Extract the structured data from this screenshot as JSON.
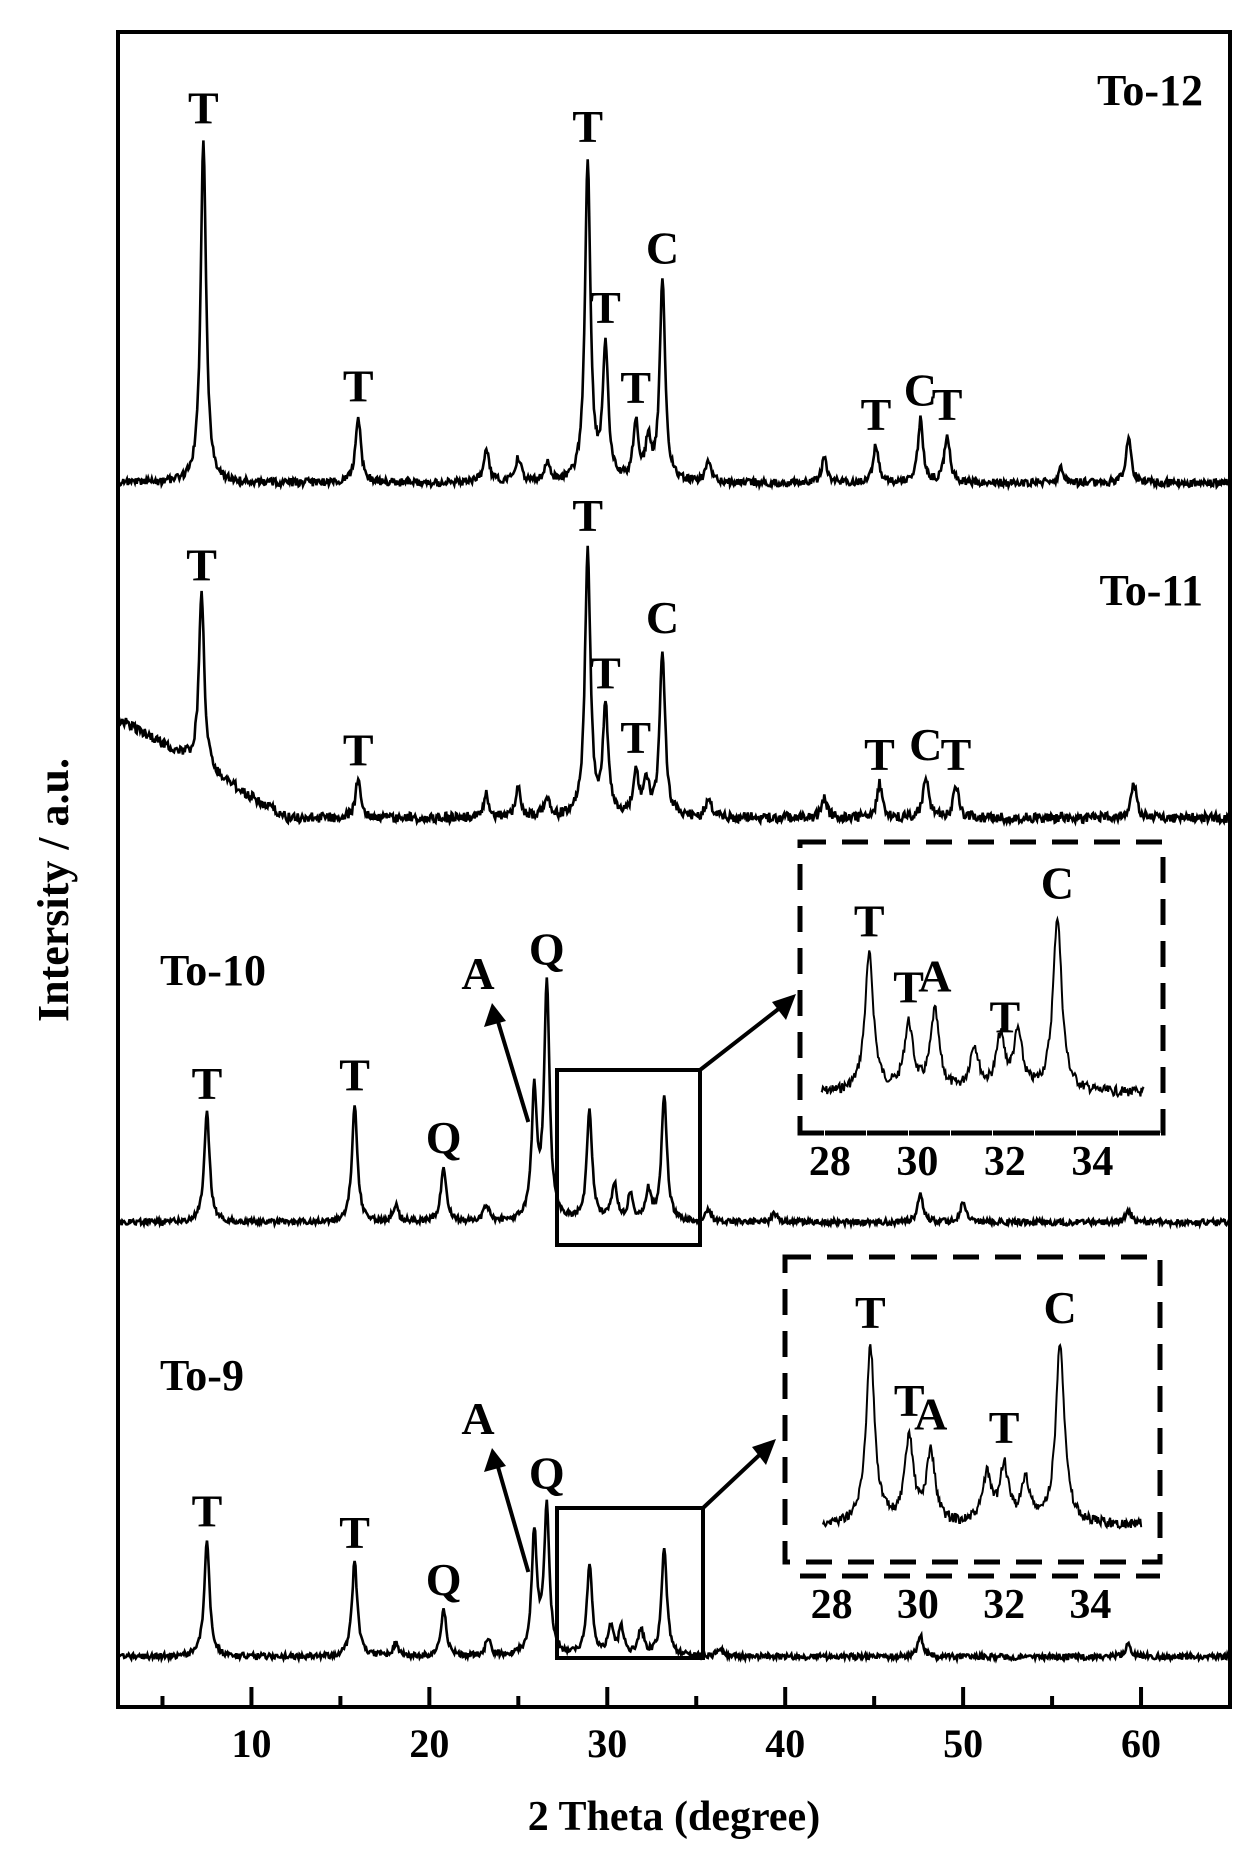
{
  "chart_data": {
    "type": "line",
    "xlabel": "2 Theta (degree)",
    "ylabel": "Intersity / a.u.",
    "xlim": [
      2.5,
      65
    ],
    "x_ticks": [
      10,
      20,
      30,
      40,
      50,
      60
    ],
    "grid": false,
    "legend": "none",
    "series": [
      {
        "name": "To-12",
        "baseline": 0.1,
        "peaks": [
          [
            7.3,
            0.72
          ],
          [
            16.0,
            0.14
          ],
          [
            23.2,
            0.07
          ],
          [
            25.0,
            0.05
          ],
          [
            26.6,
            0.04
          ],
          [
            28.9,
            0.67
          ],
          [
            29.9,
            0.28
          ],
          [
            31.6,
            0.12
          ],
          [
            32.3,
            0.08
          ],
          [
            33.1,
            0.42
          ],
          [
            35.7,
            0.04
          ],
          [
            42.2,
            0.05
          ],
          [
            45.1,
            0.08
          ],
          [
            47.6,
            0.13
          ],
          [
            49.1,
            0.1
          ],
          [
            55.5,
            0.03
          ],
          [
            59.3,
            0.09
          ]
        ],
        "labels": [
          {
            "text": "T",
            "x": 7.3
          },
          {
            "text": "T",
            "x": 16.0
          },
          {
            "text": "T",
            "x": 28.9
          },
          {
            "text": "T",
            "x": 29.9
          },
          {
            "text": "T",
            "x": 31.6
          },
          {
            "text": "C",
            "x": 33.1
          },
          {
            "text": "T",
            "x": 45.1
          },
          {
            "text": "C",
            "x": 47.6
          },
          {
            "text": "T",
            "x": 49.1
          }
        ],
        "sample_label": "To-12"
      },
      {
        "name": "To-11",
        "baseline": 0.1,
        "peaks": [
          [
            7.2,
            0.36
          ],
          [
            16.0,
            0.08
          ],
          [
            23.2,
            0.05
          ],
          [
            25.0,
            0.06
          ],
          [
            26.6,
            0.04
          ],
          [
            28.9,
            0.56
          ],
          [
            29.9,
            0.22
          ],
          [
            31.6,
            0.09
          ],
          [
            32.2,
            0.07
          ],
          [
            33.1,
            0.35
          ],
          [
            35.7,
            0.04
          ],
          [
            42.2,
            0.04
          ],
          [
            45.3,
            0.07
          ],
          [
            47.9,
            0.09
          ],
          [
            49.6,
            0.07
          ],
          [
            59.6,
            0.07
          ]
        ],
        "labels": [
          {
            "text": "T",
            "x": 7.2
          },
          {
            "text": "T",
            "x": 16.0
          },
          {
            "text": "T",
            "x": 28.9
          },
          {
            "text": "T",
            "x": 29.9
          },
          {
            "text": "T",
            "x": 31.6
          },
          {
            "text": "C",
            "x": 33.1
          },
          {
            "text": "T",
            "x": 45.3
          },
          {
            "text": "C",
            "x": 47.9
          },
          {
            "text": "T",
            "x": 49.6
          }
        ],
        "sample_label": "To-11"
      },
      {
        "name": "To-10",
        "baseline": 0.04,
        "peaks": [
          [
            7.5,
            0.26
          ],
          [
            15.8,
            0.28
          ],
          [
            18.1,
            0.04
          ],
          [
            20.8,
            0.13
          ],
          [
            23.2,
            0.04
          ],
          [
            25.9,
            0.3
          ],
          [
            26.6,
            0.56
          ],
          [
            29.0,
            0.26
          ],
          [
            30.4,
            0.09
          ],
          [
            31.3,
            0.06
          ],
          [
            32.3,
            0.07
          ],
          [
            33.2,
            0.3
          ],
          [
            35.7,
            0.03
          ],
          [
            39.4,
            0.02
          ],
          [
            47.6,
            0.07
          ],
          [
            50.0,
            0.05
          ],
          [
            59.3,
            0.03
          ]
        ],
        "labels": [
          {
            "text": "T",
            "x": 7.5
          },
          {
            "text": "T",
            "x": 15.8
          },
          {
            "text": "Q",
            "x": 20.8
          },
          {
            "text": "Q",
            "x": 26.6
          }
        ],
        "sample_label": "To-10"
      },
      {
        "name": "To-9",
        "baseline": 0.03,
        "peaks": [
          [
            7.5,
            0.27
          ],
          [
            15.8,
            0.22
          ],
          [
            18.1,
            0.03
          ],
          [
            20.8,
            0.11
          ],
          [
            23.3,
            0.04
          ],
          [
            25.9,
            0.28
          ],
          [
            26.6,
            0.34
          ],
          [
            29.0,
            0.21
          ],
          [
            30.2,
            0.07
          ],
          [
            30.8,
            0.06
          ],
          [
            31.9,
            0.06
          ],
          [
            33.2,
            0.25
          ],
          [
            36.3,
            0.02
          ],
          [
            47.6,
            0.05
          ],
          [
            59.3,
            0.03
          ]
        ],
        "labels": [
          {
            "text": "T",
            "x": 7.5
          },
          {
            "text": "T",
            "x": 15.8
          },
          {
            "text": "Q",
            "x": 20.8
          },
          {
            "text": "Q",
            "x": 26.6
          }
        ],
        "sample_label": "To-9"
      }
    ],
    "insets": [
      {
        "sample": "To-10",
        "x_range": [
          27.5,
          35.5
        ],
        "x_ticks": [
          "28",
          "30",
          "32",
          "34"
        ],
        "peaks": [
          [
            28.9,
            0.78
          ],
          [
            29.8,
            0.38
          ],
          [
            30.4,
            0.45
          ],
          [
            31.3,
            0.25
          ],
          [
            31.9,
            0.3
          ],
          [
            32.3,
            0.32
          ],
          [
            33.2,
            1.0
          ]
        ],
        "labels": [
          {
            "text": "T",
            "x": 28.9
          },
          {
            "text": "T",
            "x": 29.8
          },
          {
            "text": "A",
            "x": 30.4
          },
          {
            "text": "T",
            "x": 32.0
          },
          {
            "text": "C",
            "x": 33.2
          }
        ]
      },
      {
        "sample": "To-9",
        "x_range": [
          27.5,
          35.5
        ],
        "x_ticks": [
          "28",
          "30",
          "32",
          "34"
        ],
        "peaks": [
          [
            28.9,
            0.95
          ],
          [
            29.8,
            0.45
          ],
          [
            30.3,
            0.38
          ],
          [
            31.6,
            0.25
          ],
          [
            32.0,
            0.3
          ],
          [
            32.5,
            0.22
          ],
          [
            33.3,
            0.98
          ]
        ],
        "labels": [
          {
            "text": "T",
            "x": 28.9
          },
          {
            "text": "T",
            "x": 29.8
          },
          {
            "text": "A",
            "x": 30.3
          },
          {
            "text": "T",
            "x": 32.0
          },
          {
            "text": "C",
            "x": 33.3
          }
        ]
      }
    ],
    "annotations": [
      {
        "text": "A",
        "points_to_x": 25.9,
        "sample": "To-10"
      },
      {
        "text": "A",
        "points_to_x": 25.9,
        "sample": "To-9"
      }
    ]
  }
}
